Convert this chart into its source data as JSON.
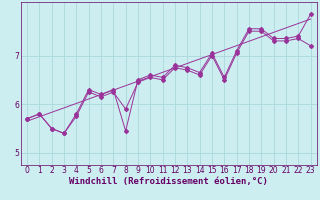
{
  "xlabel": "Windchill (Refroidissement éolien,°C)",
  "bg_color": "#cceef0",
  "grid_color": "#aad8dc",
  "line_color": "#993399",
  "xlim": [
    -0.5,
    23.5
  ],
  "ylim": [
    4.75,
    8.1
  ],
  "xticks": [
    0,
    1,
    2,
    3,
    4,
    5,
    6,
    7,
    8,
    9,
    10,
    11,
    12,
    13,
    14,
    15,
    16,
    17,
    18,
    19,
    20,
    21,
    22,
    23
  ],
  "yticks": [
    5,
    6,
    7
  ],
  "data_x": [
    0,
    1,
    2,
    3,
    4,
    5,
    6,
    7,
    8,
    9,
    10,
    11,
    12,
    13,
    14,
    15,
    16,
    17,
    18,
    19,
    20,
    21,
    22,
    23
  ],
  "data_y1": [
    5.7,
    5.8,
    5.5,
    5.4,
    5.8,
    6.3,
    6.2,
    6.3,
    5.45,
    6.5,
    6.6,
    6.55,
    6.8,
    6.75,
    6.65,
    7.05,
    6.55,
    7.1,
    7.55,
    7.55,
    7.35,
    7.35,
    7.4,
    7.85
  ],
  "data_y2": [
    5.7,
    5.8,
    5.5,
    5.4,
    5.75,
    6.25,
    6.15,
    6.25,
    5.9,
    6.45,
    6.55,
    6.5,
    6.75,
    6.7,
    6.6,
    7.0,
    6.5,
    7.05,
    7.5,
    7.5,
    7.3,
    7.3,
    7.35,
    7.2
  ],
  "trend_x": [
    0,
    23
  ],
  "trend_y": [
    5.65,
    7.75
  ],
  "font_color": "#660066",
  "tick_fontsize": 5.5,
  "xlabel_fontsize": 6.5
}
